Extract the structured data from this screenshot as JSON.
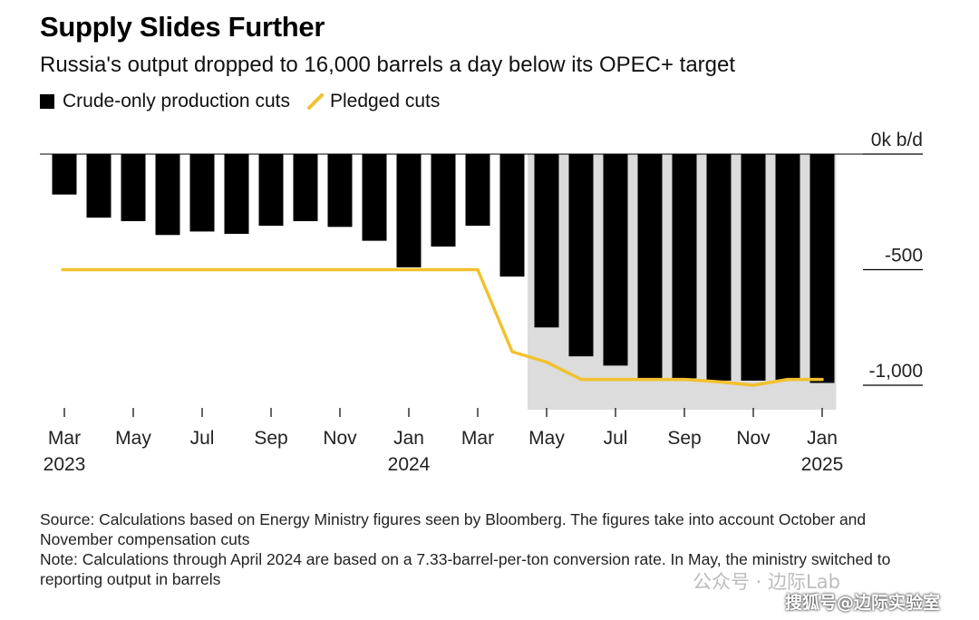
{
  "header": {
    "title": "Supply Slides Further",
    "subtitle": "Russia's output dropped to 16,000 barrels a day below its OPEC+ target"
  },
  "legend": {
    "items": [
      {
        "label": "Crude-only production cuts",
        "color": "#000000",
        "shape": "square"
      },
      {
        "label": "Pledged cuts",
        "color": "#f2c12e",
        "shape": "line"
      }
    ]
  },
  "chart_data": {
    "type": "bar",
    "categories": [
      "Mar 2023",
      "Apr 2023",
      "May 2023",
      "Jun 2023",
      "Jul 2023",
      "Aug 2023",
      "Sep 2023",
      "Oct 2023",
      "Nov 2023",
      "Dec 2023",
      "Jan 2024",
      "Feb 2024",
      "Mar 2024",
      "Apr 2024",
      "May 2024",
      "Jun 2024",
      "Jul 2024",
      "Aug 2024",
      "Sep 2024",
      "Oct 2024",
      "Nov 2024",
      "Dec 2024",
      "Jan 2025"
    ],
    "series": [
      {
        "name": "Crude-only production cuts",
        "type": "bar",
        "color": "#000000",
        "values": [
          -175,
          -275,
          -290,
          -350,
          -335,
          -345,
          -310,
          -290,
          -315,
          -375,
          -490,
          -400,
          -310,
          -530,
          -750,
          -875,
          -915,
          -970,
          -970,
          -980,
          -980,
          -980,
          -990
        ]
      },
      {
        "name": "Pledged cuts",
        "type": "line",
        "color": "#f2c12e",
        "values": [
          -500,
          -500,
          -500,
          -500,
          -500,
          -500,
          -500,
          -500,
          -500,
          -500,
          -500,
          -500,
          -500,
          -855,
          -900,
          -975,
          -975,
          -975,
          -975,
          -985,
          -1000,
          -975,
          -975
        ]
      }
    ],
    "y_axis": {
      "label": "k b/d",
      "ylim": [
        -1100,
        0
      ],
      "ticks": [
        {
          "value": 0,
          "label": "0k b/d"
        },
        {
          "value": -500,
          "label": "-500"
        },
        {
          "value": -1000,
          "label": "-1,000"
        }
      ],
      "position": "right"
    },
    "x_axis": {
      "tick_labels": [
        {
          "month": "Mar",
          "year": "2023",
          "index": 0
        },
        {
          "month": "May",
          "year": "",
          "index": 2
        },
        {
          "month": "Jul",
          "year": "",
          "index": 4
        },
        {
          "month": "Sep",
          "year": "",
          "index": 6
        },
        {
          "month": "Nov",
          "year": "",
          "index": 8
        },
        {
          "month": "Jan",
          "year": "2024",
          "index": 10
        },
        {
          "month": "Mar",
          "year": "",
          "index": 12
        },
        {
          "month": "May",
          "year": "",
          "index": 14
        },
        {
          "month": "Jul",
          "year": "",
          "index": 16
        },
        {
          "month": "Sep",
          "year": "",
          "index": 18
        },
        {
          "month": "Nov",
          "year": "",
          "index": 20
        },
        {
          "month": "Jan",
          "year": "2025",
          "index": 22
        }
      ]
    },
    "shaded_region": {
      "from": "May 2024",
      "to": "Jan 2025",
      "color": "#dcdcdc"
    },
    "grid": false
  },
  "footer": {
    "source": "Source: Calculations based on Energy Ministry figures seen by Bloomberg. The figures take into account October and November compensation cuts",
    "note": "Note: Calculations through April 2024 are based on a 7.33-barrel-per-ton conversion rate. In May, the ministry switched to reporting output in barrels"
  },
  "watermarks": {
    "wechat": "公众号 · 边际Lab",
    "sohu": "搜狐号@边际实验室"
  }
}
